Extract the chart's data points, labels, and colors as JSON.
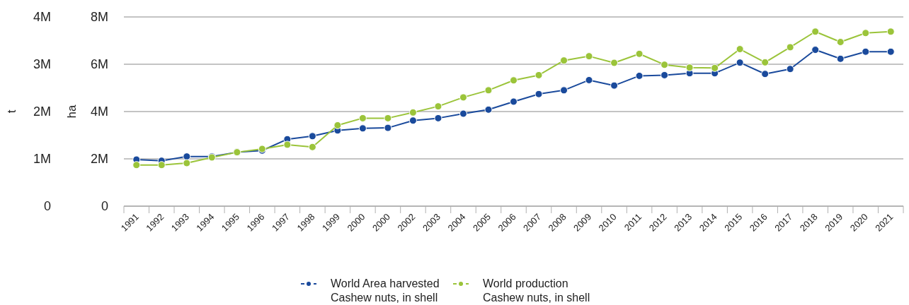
{
  "chart_data": {
    "type": "line",
    "ylabel": "t",
    "y2label": "ha",
    "categories": [
      "1991",
      "1992",
      "1993",
      "1994",
      "1995",
      "1996",
      "1997",
      "1998",
      "1999",
      "2000",
      "2000",
      "2002",
      "2003",
      "2004",
      "2005",
      "2006",
      "2007",
      "2008",
      "2009",
      "2010",
      "2011",
      "2012",
      "2013",
      "2014",
      "2015",
      "2016",
      "2017",
      "2018",
      "2019",
      "2020",
      "2021"
    ],
    "series": [
      {
        "name": "World Area harvested\nCashew nuts, in shell",
        "color": "#1a4a9c",
        "axis": "y2",
        "values": [
          1970000,
          1920000,
          2100000,
          2100000,
          2280000,
          2350000,
          2830000,
          2960000,
          3200000,
          3290000,
          3310000,
          3620000,
          3720000,
          3910000,
          4080000,
          4420000,
          4740000,
          4900000,
          5330000,
          5100000,
          5510000,
          5540000,
          5620000,
          5620000,
          6070000,
          5590000,
          5800000,
          6610000,
          6230000,
          6530000,
          6530000
        ]
      },
      {
        "name": "World production\nCashew nuts, in shell",
        "color": "#9bc43a",
        "axis": "y",
        "values": [
          870000,
          870000,
          910000,
          1030000,
          1140000,
          1210000,
          1300000,
          1250000,
          1710000,
          1860000,
          1860000,
          1980000,
          2110000,
          2300000,
          2450000,
          2660000,
          2770000,
          3080000,
          3170000,
          3030000,
          3220000,
          2990000,
          2930000,
          2920000,
          3320000,
          3040000,
          3360000,
          3690000,
          3470000,
          3660000,
          3690000
        ]
      }
    ],
    "ylim": [
      0,
      4000000
    ],
    "yticks": [
      {
        "value": 0,
        "label": "0"
      },
      {
        "value": 1000000,
        "label": "1M"
      },
      {
        "value": 2000000,
        "label": "2M"
      },
      {
        "value": 3000000,
        "label": "3M"
      },
      {
        "value": 4000000,
        "label": "4M"
      }
    ],
    "y2lim": [
      0,
      8000000
    ],
    "y2ticks": [
      {
        "value": 0,
        "label": "0"
      },
      {
        "value": 2000000,
        "label": "2M"
      },
      {
        "value": 4000000,
        "label": "4M"
      },
      {
        "value": 6000000,
        "label": "6M"
      },
      {
        "value": 8000000,
        "label": "8M"
      }
    ],
    "grid": "y",
    "legend": "bottom",
    "marker": "circle",
    "line_style": "solid"
  }
}
